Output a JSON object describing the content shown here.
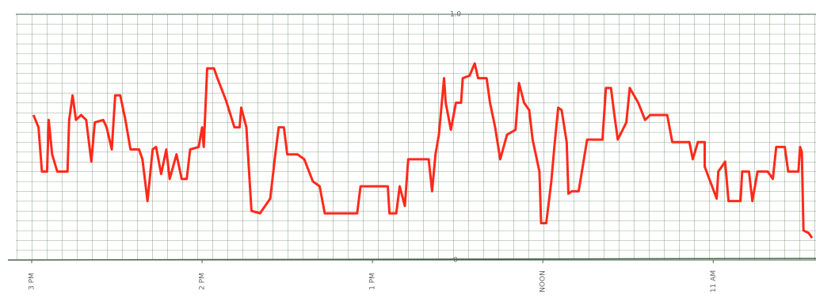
{
  "chart_data": {
    "type": "line",
    "x": [
      14.99,
      14.96,
      14.94,
      14.91,
      14.9,
      14.88,
      14.85,
      14.79,
      14.78,
      14.76,
      14.74,
      14.71,
      14.68,
      14.65,
      14.63,
      14.58,
      14.56,
      14.53,
      14.51,
      14.48,
      14.45,
      14.42,
      14.37,
      14.35,
      14.32,
      14.29,
      14.27,
      14.24,
      14.21,
      14.19,
      14.15,
      14.12,
      14.09,
      14.07,
      14.02,
      14.0,
      13.99,
      13.97,
      13.93,
      13.91,
      13.86,
      13.81,
      13.78,
      13.77,
      13.74,
      13.71,
      13.66,
      13.6,
      13.57,
      13.55,
      13.52,
      13.5,
      13.44,
      13.4,
      13.35,
      13.31,
      13.28,
      13.14,
      13.09,
      13.07,
      12.91,
      12.9,
      12.86,
      12.84,
      12.81,
      12.79,
      12.67,
      12.65,
      12.63,
      12.61,
      12.58,
      12.57,
      12.54,
      12.51,
      12.48,
      12.47,
      12.43,
      12.4,
      12.38,
      12.33,
      12.31,
      12.28,
      12.25,
      12.21,
      12.16,
      12.14,
      12.11,
      12.08,
      12.06,
      12.02,
      12.01,
      11.98,
      11.95,
      11.93,
      11.91,
      11.89,
      11.86,
      11.85,
      11.83,
      11.79,
      11.74,
      11.65,
      11.63,
      11.6,
      11.58,
      11.56,
      11.51,
      11.49,
      11.44,
      11.4,
      11.37,
      11.27,
      11.24,
      11.14,
      11.12,
      11.09,
      11.05,
      11.05,
      10.98,
      10.97,
      10.93,
      10.91,
      10.84,
      10.83,
      10.79,
      10.77,
      10.74,
      10.68,
      10.65,
      10.63,
      10.58,
      10.56,
      10.5,
      10.49,
      10.48,
      10.47,
      10.44,
      10.42
    ],
    "series": [
      {
        "color": "#ff2a1a",
        "values": [
          0.59,
          0.54,
          0.36,
          0.36,
          0.57,
          0.43,
          0.36,
          0.36,
          0.57,
          0.67,
          0.57,
          0.59,
          0.57,
          0.4,
          0.56,
          0.57,
          0.54,
          0.45,
          0.67,
          0.67,
          0.57,
          0.45,
          0.45,
          0.41,
          0.24,
          0.45,
          0.46,
          0.35,
          0.45,
          0.33,
          0.43,
          0.33,
          0.33,
          0.45,
          0.46,
          0.54,
          0.46,
          0.78,
          0.78,
          0.74,
          0.65,
          0.54,
          0.54,
          0.62,
          0.54,
          0.2,
          0.19,
          0.25,
          0.43,
          0.54,
          0.54,
          0.43,
          0.43,
          0.41,
          0.32,
          0.3,
          0.19,
          0.19,
          0.19,
          0.3,
          0.3,
          0.19,
          0.19,
          0.3,
          0.22,
          0.41,
          0.41,
          0.28,
          0.43,
          0.51,
          0.74,
          0.64,
          0.53,
          0.64,
          0.64,
          0.74,
          0.75,
          0.8,
          0.74,
          0.74,
          0.64,
          0.54,
          0.41,
          0.51,
          0.53,
          0.72,
          0.64,
          0.61,
          0.49,
          0.36,
          0.15,
          0.15,
          0.32,
          0.48,
          0.62,
          0.61,
          0.48,
          0.27,
          0.28,
          0.28,
          0.49,
          0.49,
          0.7,
          0.7,
          0.59,
          0.49,
          0.56,
          0.7,
          0.64,
          0.57,
          0.59,
          0.59,
          0.48,
          0.48,
          0.41,
          0.48,
          0.48,
          0.38,
          0.25,
          0.36,
          0.4,
          0.24,
          0.24,
          0.36,
          0.36,
          0.24,
          0.36,
          0.36,
          0.33,
          0.46,
          0.46,
          0.36,
          0.36,
          0.46,
          0.44,
          0.12,
          0.11,
          0.09
        ]
      }
    ],
    "xlim": [
      15,
      10.42
    ],
    "xticks": [
      {
        "value": 15,
        "label": "3 PM"
      },
      {
        "value": 14,
        "label": "2 PM"
      },
      {
        "value": 13,
        "label": "1 PM"
      },
      {
        "value": 12,
        "label": "NOON"
      },
      {
        "value": 11,
        "label": "11 AM"
      }
    ],
    "ylim": [
      0,
      1
    ],
    "yticks": [
      0,
      {
        "value": 1,
        "label": "1.0"
      }
    ],
    "grid": true
  }
}
